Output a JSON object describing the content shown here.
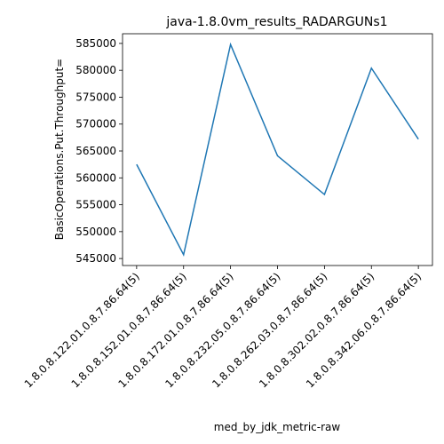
{
  "chart_data": {
    "type": "line",
    "title": "java-1.8.0vm_results_RADARGUNs1",
    "xlabel": "med_by_jdk_metric-raw",
    "ylabel": "BasicOperations.Put.Throughput=",
    "categories": [
      "1.8.0.8.122.01.0.8.7.86.64(5)",
      "1.8.0.8.152.01.0.8.7.86.64(5)",
      "1.8.0.8.172.01.0.8.7.86.64(5)",
      "1.8.0.8.232.05.0.8.7.86.64(5)",
      "1.8.0.8.262.03.0.8.7.86.64(5)",
      "1.8.0.8.302.02.0.8.7.86.64(5)",
      "1.8.0.8.342.06.0.8.7.86.64(5)"
    ],
    "series": [
      {
        "values": [
          562500,
          545700,
          584800,
          564100,
          556900,
          580400,
          567200
        ]
      }
    ],
    "ylim": [
      543700,
      586800
    ],
    "yticks": [
      545000,
      550000,
      555000,
      560000,
      565000,
      570000,
      575000,
      580000,
      585000
    ],
    "grid": false,
    "line_color": "#1f77b4"
  }
}
